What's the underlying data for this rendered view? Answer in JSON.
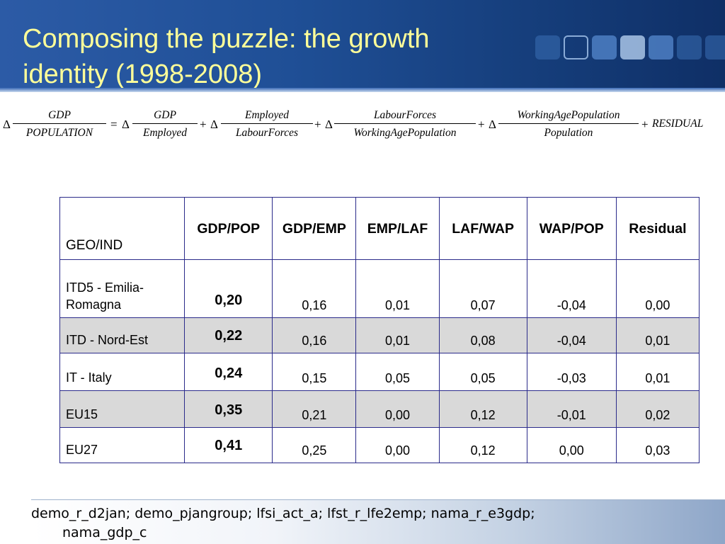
{
  "title": "Composing the puzzle: the growth identity (1998-2008)",
  "formula": {
    "delta": "Δ",
    "equals": "=",
    "plus": "+",
    "terms": [
      {
        "num": "GDP",
        "den": "POPULATION"
      },
      {
        "num": "GDP",
        "den": "Employed"
      },
      {
        "num": "Employed",
        "den": "LabourForces"
      },
      {
        "num": "LabourForces",
        "den": "WorkingAgePopulation"
      },
      {
        "num": "WorkingAgePopulation",
        "den": "Population"
      }
    ],
    "residual": "RESIDUAL"
  },
  "table": {
    "headers": [
      "GEO/IND",
      "GDP/POP",
      "GDP/EMP",
      "EMP/LAF",
      "LAF/WAP",
      "WAP/POP",
      "Residual"
    ],
    "rows": [
      {
        "geo": "ITD5 - Emilia-Romagna",
        "values": [
          "0,20",
          "0,16",
          "0,01",
          "0,07",
          "-0,04",
          "0,00"
        ]
      },
      {
        "geo": "ITD - Nord-Est",
        "values": [
          "0,22",
          "0,16",
          "0,01",
          "0,08",
          "-0,04",
          "0,01"
        ]
      },
      {
        "geo": "IT - Italy",
        "values": [
          "0,24",
          "0,15",
          "0,05",
          "0,05",
          "-0,03",
          "0,01"
        ]
      },
      {
        "geo": "EU15",
        "values": [
          "0,35",
          "0,21",
          "0,00",
          "0,12",
          "-0,01",
          "0,02"
        ]
      },
      {
        "geo": "EU27",
        "values": [
          "0,41",
          "0,25",
          "0,00",
          "0,12",
          "0,00",
          "0,03"
        ]
      }
    ]
  },
  "footer": {
    "line1": "demo_r_d2jan;  demo_pjangroup; lfsi_act_a; lfst_r_lfe2emp; nama_r_e3gdp;",
    "line2": "nama_gdp_c"
  },
  "colors": {
    "header": "#1f4f96",
    "title_text": "#ffff99",
    "table_border": "#2a2a8a",
    "row_shade": "#d9d9d9"
  }
}
